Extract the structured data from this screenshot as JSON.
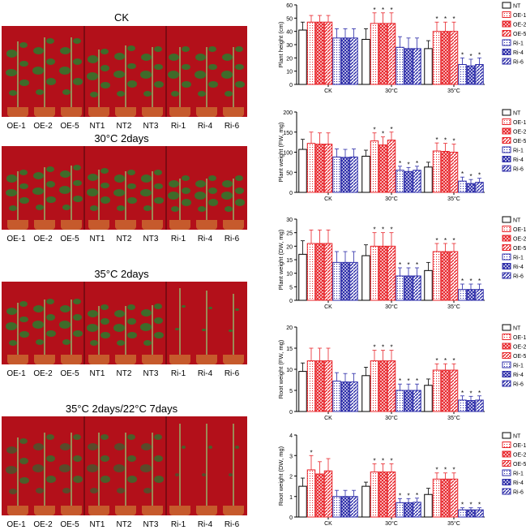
{
  "left_panels": [
    {
      "title": "CK",
      "labels": [
        "OE-1",
        "OE-2",
        "OE-5",
        "NT1",
        "NT2",
        "NT3",
        "Ri-1",
        "Ri-4",
        "Ri-6"
      ]
    },
    {
      "title": "30°C  2days",
      "labels": [
        "OE-1",
        "OE-2",
        "OE-5",
        "NT1",
        "NT2",
        "NT3",
        "Ri-1",
        "Ri-4",
        "Ri-6"
      ]
    },
    {
      "title": "35°C  2days",
      "labels": [
        "OE-1",
        "OE-2",
        "OE-5",
        "NT1",
        "NT2",
        "NT3",
        "Ri-1",
        "Ri-4",
        "Ri-6"
      ]
    },
    {
      "title": "35°C  2days/22°C  7days",
      "labels": [
        "OE-1",
        "OE-2",
        "OE-5",
        "NT1",
        "NT2",
        "NT3",
        "Ri-1",
        "Ri-4",
        "Ri-6"
      ]
    }
  ],
  "colors": {
    "NT": "#000000",
    "OE": "#e8242a",
    "Ri": "#2b2ba8",
    "bg_red": "#b3101a"
  },
  "chart_data": [
    {
      "type": "bar",
      "ylabel": "Plant height (cm)",
      "ylim": [
        0,
        60
      ],
      "ticks": [
        0,
        10,
        20,
        30,
        40,
        50,
        60
      ],
      "categories": [
        "CK",
        "30°C",
        "35°C"
      ],
      "series": [
        {
          "name": "NT",
          "values": [
            41,
            34,
            27
          ],
          "err": [
            6,
            8,
            6
          ],
          "star": [
            false,
            false,
            false
          ]
        },
        {
          "name": "OE-1",
          "values": [
            47,
            46,
            40
          ],
          "err": [
            5,
            8,
            7
          ],
          "star": [
            false,
            true,
            true
          ]
        },
        {
          "name": "OE-2",
          "values": [
            47,
            46,
            40
          ],
          "err": [
            5,
            8,
            7
          ],
          "star": [
            false,
            true,
            true
          ]
        },
        {
          "name": "OE-5",
          "values": [
            47,
            46,
            40
          ],
          "err": [
            5,
            8,
            7
          ],
          "star": [
            false,
            true,
            true
          ]
        },
        {
          "name": "Ri-1",
          "values": [
            35,
            28,
            15
          ],
          "err": [
            7,
            8,
            5
          ],
          "star": [
            false,
            false,
            true
          ]
        },
        {
          "name": "Ri-4",
          "values": [
            35,
            27,
            14
          ],
          "err": [
            7,
            8,
            5
          ],
          "star": [
            false,
            false,
            true
          ]
        },
        {
          "name": "Ri-6",
          "values": [
            35,
            27,
            15
          ],
          "err": [
            7,
            8,
            5
          ],
          "star": [
            false,
            false,
            true
          ]
        }
      ]
    },
    {
      "type": "bar",
      "ylabel": "Plant weight (FW, mg)",
      "ylim": [
        0,
        200
      ],
      "ticks": [
        0,
        50,
        100,
        150,
        200
      ],
      "categories": [
        "CK",
        "30°C",
        "35°C"
      ],
      "series": [
        {
          "name": "NT",
          "values": [
            107,
            90,
            63
          ],
          "err": [
            25,
            15,
            12
          ],
          "star": [
            false,
            false,
            false
          ]
        },
        {
          "name": "OE-1",
          "values": [
            122,
            128,
            103
          ],
          "err": [
            28,
            20,
            20
          ],
          "star": [
            false,
            true,
            true
          ]
        },
        {
          "name": "OE-2",
          "values": [
            120,
            118,
            102
          ],
          "err": [
            28,
            20,
            20
          ],
          "star": [
            false,
            true,
            true
          ]
        },
        {
          "name": "OE-5",
          "values": [
            120,
            130,
            100
          ],
          "err": [
            28,
            20,
            20
          ],
          "star": [
            false,
            true,
            true
          ]
        },
        {
          "name": "Ri-1",
          "values": [
            88,
            55,
            28
          ],
          "err": [
            20,
            10,
            10
          ],
          "star": [
            false,
            true,
            true
          ]
        },
        {
          "name": "Ri-4",
          "values": [
            87,
            52,
            22
          ],
          "err": [
            20,
            10,
            10
          ],
          "star": [
            false,
            true,
            true
          ]
        },
        {
          "name": "Ri-6",
          "values": [
            88,
            55,
            25
          ],
          "err": [
            20,
            10,
            10
          ],
          "star": [
            false,
            true,
            true
          ]
        }
      ]
    },
    {
      "type": "bar",
      "ylabel": "Plant weight (DW, mg)",
      "ylim": [
        0,
        30
      ],
      "ticks": [
        0,
        5,
        10,
        15,
        20,
        25,
        30
      ],
      "categories": [
        "CK",
        "30°C",
        "35°C"
      ],
      "series": [
        {
          "name": "NT",
          "values": [
            17,
            16.5,
            11
          ],
          "err": [
            5,
            4,
            3
          ],
          "star": [
            false,
            false,
            false
          ]
        },
        {
          "name": "OE-1",
          "values": [
            21,
            20,
            18
          ],
          "err": [
            5,
            5,
            3
          ],
          "star": [
            false,
            true,
            true
          ]
        },
        {
          "name": "OE-2",
          "values": [
            21,
            20,
            18
          ],
          "err": [
            5,
            5,
            3
          ],
          "star": [
            false,
            true,
            true
          ]
        },
        {
          "name": "OE-5",
          "values": [
            21,
            20,
            18
          ],
          "err": [
            5,
            5,
            3
          ],
          "star": [
            false,
            true,
            true
          ]
        },
        {
          "name": "Ri-1",
          "values": [
            14,
            9,
            4
          ],
          "err": [
            4,
            3,
            2
          ],
          "star": [
            false,
            true,
            true
          ]
        },
        {
          "name": "Ri-4",
          "values": [
            14,
            9,
            4
          ],
          "err": [
            4,
            3,
            2
          ],
          "star": [
            false,
            true,
            true
          ]
        },
        {
          "name": "Ri-6",
          "values": [
            14,
            9,
            4
          ],
          "err": [
            4,
            3,
            2
          ],
          "star": [
            false,
            true,
            true
          ]
        }
      ]
    },
    {
      "type": "bar",
      "ylabel": "Root weight (FW, mg)",
      "ylim": [
        0,
        20
      ],
      "ticks": [
        0,
        5,
        10,
        15,
        20
      ],
      "categories": [
        "CK",
        "30°C",
        "35°C"
      ],
      "series": [
        {
          "name": "NT",
          "values": [
            9.5,
            8.5,
            6.2
          ],
          "err": [
            2,
            2,
            1.5
          ],
          "star": [
            false,
            false,
            false
          ]
        },
        {
          "name": "OE-1",
          "values": [
            12,
            12,
            9.8
          ],
          "err": [
            3,
            2.5,
            1.5
          ],
          "star": [
            false,
            true,
            true
          ]
        },
        {
          "name": "OE-2",
          "values": [
            12,
            12,
            9.8
          ],
          "err": [
            3,
            2.5,
            1.5
          ],
          "star": [
            false,
            true,
            true
          ]
        },
        {
          "name": "OE-5",
          "values": [
            12,
            12,
            9.8
          ],
          "err": [
            3,
            2.5,
            1.5
          ],
          "star": [
            false,
            true,
            true
          ]
        },
        {
          "name": "Ri-1",
          "values": [
            7.2,
            5,
            2.7
          ],
          "err": [
            2,
            1.5,
            1
          ],
          "star": [
            false,
            true,
            true
          ]
        },
        {
          "name": "Ri-4",
          "values": [
            7,
            5,
            2.6
          ],
          "err": [
            2,
            1.5,
            1
          ],
          "star": [
            false,
            true,
            true
          ]
        },
        {
          "name": "Ri-6",
          "values": [
            7,
            5,
            2.7
          ],
          "err": [
            2,
            1.5,
            1
          ],
          "star": [
            false,
            true,
            true
          ]
        }
      ]
    },
    {
      "type": "bar",
      "ylabel": "Root weight (DW, mg)",
      "ylim": [
        0,
        4
      ],
      "ticks": [
        0,
        1,
        2,
        3,
        4
      ],
      "categories": [
        "CK",
        "30°C",
        "35°C"
      ],
      "series": [
        {
          "name": "NT",
          "values": [
            1.5,
            1.5,
            1.1
          ],
          "err": [
            0.4,
            0.2,
            0.3
          ],
          "star": [
            false,
            false,
            false
          ]
        },
        {
          "name": "OE-1",
          "values": [
            2.3,
            2.2,
            1.85
          ],
          "err": [
            0.7,
            0.4,
            0.3
          ],
          "star": [
            true,
            true,
            true
          ]
        },
        {
          "name": "OE-2",
          "values": [
            2.1,
            2.2,
            1.85
          ],
          "err": [
            0.6,
            0.4,
            0.3
          ],
          "star": [
            false,
            true,
            true
          ]
        },
        {
          "name": "OE-5",
          "values": [
            2.25,
            2.2,
            1.85
          ],
          "err": [
            0.6,
            0.4,
            0.3
          ],
          "star": [
            false,
            true,
            true
          ]
        },
        {
          "name": "Ri-1",
          "values": [
            1.0,
            0.7,
            0.35
          ],
          "err": [
            0.3,
            0.2,
            0.1
          ],
          "star": [
            false,
            true,
            true
          ]
        },
        {
          "name": "Ri-4",
          "values": [
            1.0,
            0.7,
            0.35
          ],
          "err": [
            0.3,
            0.2,
            0.1
          ],
          "star": [
            false,
            true,
            true
          ]
        },
        {
          "name": "Ri-6",
          "values": [
            1.0,
            0.72,
            0.35
          ],
          "err": [
            0.3,
            0.2,
            0.1
          ],
          "star": [
            false,
            true,
            true
          ]
        }
      ]
    }
  ]
}
